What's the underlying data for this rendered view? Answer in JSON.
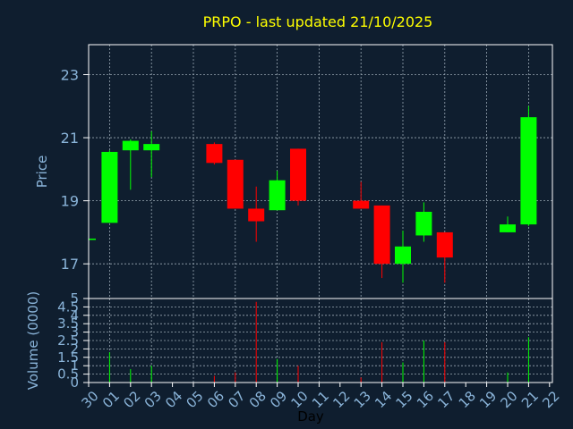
{
  "title": "PRPO - last updated 21/10/2025",
  "colors": {
    "background": "#0f1e2f",
    "title": "#ffff00",
    "tick_text": "#8ab4d9",
    "grid": "#9aa8b4",
    "frame": "#ffffff",
    "up": "#00ff00",
    "down": "#ff0000"
  },
  "chart_data": [
    {
      "type": "candlestick",
      "ylabel": "Price",
      "ylim": [
        15.9,
        23.95
      ],
      "yticks": [
        "17",
        "19",
        "21",
        "23"
      ],
      "ytick_values": [
        17,
        19,
        21,
        23
      ],
      "grid": true,
      "x_labels": [
        "30",
        "01",
        "02",
        "03",
        "04",
        "05",
        "06",
        "07",
        "08",
        "09",
        "10",
        "11",
        "12",
        "13",
        "14",
        "15",
        "16",
        "17",
        "18",
        "19",
        "20",
        "21",
        "22"
      ],
      "candles": [
        {
          "day": "30",
          "open": 17.8,
          "close": 17.8,
          "high": 17.8,
          "low": 17.8
        },
        {
          "day": "01",
          "open": 18.3,
          "close": 20.55,
          "high": 20.6,
          "low": 18.3
        },
        {
          "day": "02",
          "open": 20.6,
          "close": 20.9,
          "high": 20.95,
          "low": 19.35
        },
        {
          "day": "03",
          "open": 20.6,
          "close": 20.8,
          "high": 21.2,
          "low": 19.75
        },
        {
          "day": "06",
          "open": 20.8,
          "close": 20.2,
          "high": 20.85,
          "low": 20.15
        },
        {
          "day": "07",
          "open": 20.3,
          "close": 18.75,
          "high": 20.3,
          "low": 18.75
        },
        {
          "day": "08",
          "open": 18.75,
          "close": 18.35,
          "high": 19.45,
          "low": 17.7
        },
        {
          "day": "09",
          "open": 18.7,
          "close": 19.65,
          "high": 19.95,
          "low": 18.7
        },
        {
          "day": "10",
          "open": 20.65,
          "close": 19.0,
          "high": 20.65,
          "low": 18.85
        },
        {
          "day": "13",
          "open": 19.0,
          "close": 18.75,
          "high": 19.6,
          "low": 18.75
        },
        {
          "day": "14",
          "open": 18.85,
          "close": 17.0,
          "high": 18.85,
          "low": 16.55
        },
        {
          "day": "15",
          "open": 17.0,
          "close": 17.55,
          "high": 18.05,
          "low": 16.4
        },
        {
          "day": "16",
          "open": 17.9,
          "close": 18.65,
          "high": 18.95,
          "low": 17.7
        },
        {
          "day": "17",
          "open": 18.0,
          "close": 17.2,
          "high": 18.0,
          "low": 16.4
        },
        {
          "day": "20",
          "open": 18.0,
          "close": 18.25,
          "high": 18.5,
          "low": 18.0
        },
        {
          "day": "21",
          "open": 18.25,
          "close": 21.65,
          "high": 22.0,
          "low": 18.2
        }
      ]
    },
    {
      "type": "bar",
      "ylabel": "Volume (0000)",
      "ylim": [
        0,
        5
      ],
      "yticks": [
        "0",
        "0.5",
        "1",
        "1.5",
        "2",
        "2.5",
        "3",
        "3.5",
        "4",
        "4.5",
        "5"
      ],
      "ytick_values": [
        0,
        0.5,
        1,
        1.5,
        2,
        2.5,
        3,
        3.5,
        4,
        4.5,
        5
      ],
      "xlabel": "Day",
      "grid": true,
      "bars": [
        {
          "day": "01",
          "value": 1.8,
          "direction": "up"
        },
        {
          "day": "02",
          "value": 0.8,
          "direction": "up"
        },
        {
          "day": "03",
          "value": 1.0,
          "direction": "up"
        },
        {
          "day": "06",
          "value": 0.4,
          "direction": "down"
        },
        {
          "day": "07",
          "value": 0.6,
          "direction": "down"
        },
        {
          "day": "08",
          "value": 4.8,
          "direction": "down"
        },
        {
          "day": "09",
          "value": 1.4,
          "direction": "up"
        },
        {
          "day": "10",
          "value": 1.0,
          "direction": "down"
        },
        {
          "day": "13",
          "value": 0.3,
          "direction": "down"
        },
        {
          "day": "14",
          "value": 2.4,
          "direction": "down"
        },
        {
          "day": "15",
          "value": 1.2,
          "direction": "up"
        },
        {
          "day": "16",
          "value": 2.5,
          "direction": "up"
        },
        {
          "day": "17",
          "value": 2.4,
          "direction": "down"
        },
        {
          "day": "20",
          "value": 0.6,
          "direction": "up"
        },
        {
          "day": "21",
          "value": 2.7,
          "direction": "up"
        }
      ]
    }
  ]
}
